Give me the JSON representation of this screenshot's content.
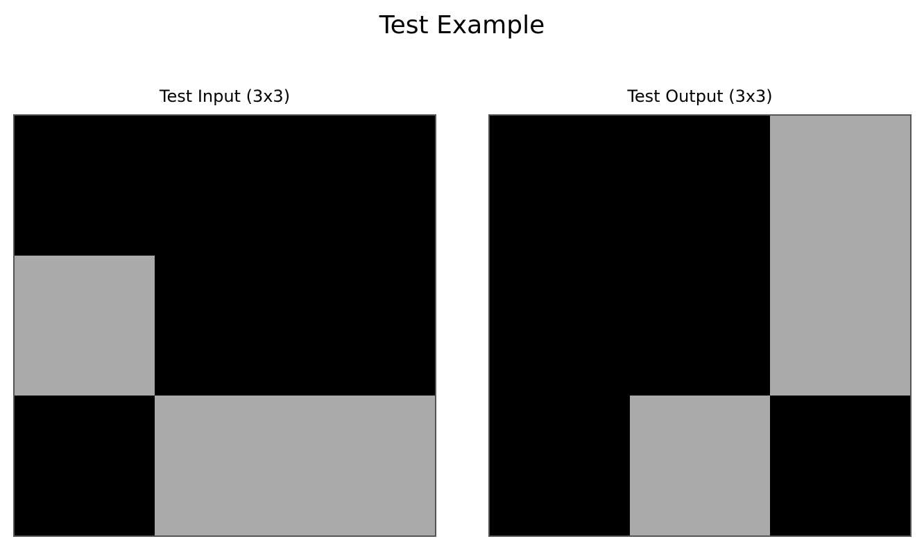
{
  "figure": {
    "title": "Test Example"
  },
  "palette": {
    "0": "#000000",
    "5": "#aaaaaa",
    "border": "#555555"
  },
  "panels": [
    {
      "title": "Test Input (3x3)",
      "grid": [
        [
          0,
          0,
          0
        ],
        [
          5,
          0,
          0
        ],
        [
          0,
          5,
          5
        ]
      ]
    },
    {
      "title": "Test Output (3x3)",
      "grid": [
        [
          0,
          0,
          5
        ],
        [
          0,
          0,
          5
        ],
        [
          0,
          5,
          0
        ]
      ]
    }
  ]
}
